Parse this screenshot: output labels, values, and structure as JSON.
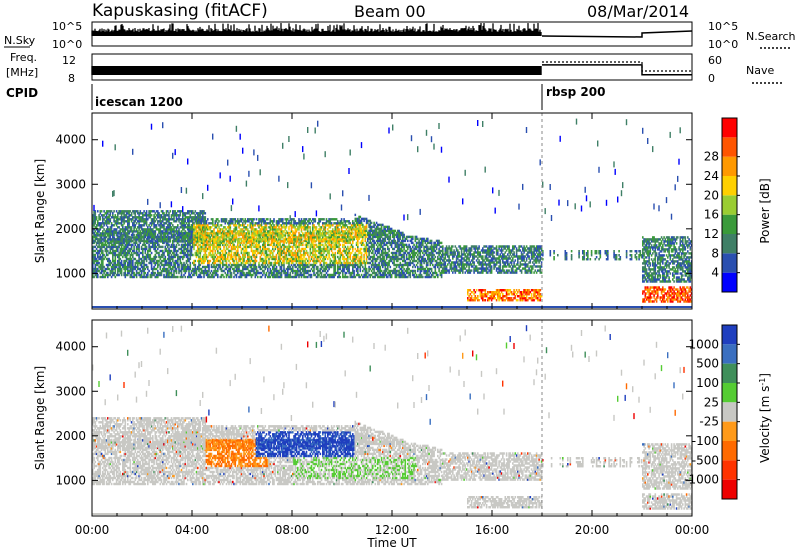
{
  "header": {
    "station": "Kapuskasing (fitACF)",
    "beam": "Beam 00",
    "date": "08/Mar/2014"
  },
  "top_panels": {
    "nsky_label": "N.Sky",
    "nsky_ticks": [
      "10^5",
      "10^0"
    ],
    "nsearch_label": "N.Search",
    "nsearch_ticks": [
      "10^5",
      "10^0"
    ],
    "freq_label": "Freq.",
    "freq_unit": "[MHz]",
    "freq_ticks": [
      "12",
      "8"
    ],
    "nave_label": "Nave",
    "nave_ticks": [
      "60",
      "0"
    ],
    "cpid_label": "CPID",
    "modes": [
      {
        "name": "icescan 1200",
        "start_hour": 0
      },
      {
        "name": "rbsp 200",
        "start_hour": 18
      }
    ],
    "nave_steps": [
      {
        "from_hour": 18,
        "to_hour": 22,
        "value": 35
      },
      {
        "from_hour": 22,
        "to_hour": 24,
        "value": 12
      }
    ]
  },
  "chart_data": [
    {
      "type": "heatmap",
      "title": "Power",
      "ylabel": "Slant Range [km]",
      "xlabel": "Time UT",
      "x_ticks": [
        "00:00",
        "04:00",
        "08:00",
        "12:00",
        "16:00",
        "20:00",
        "00:00"
      ],
      "x_range_hours": [
        0,
        24
      ],
      "y_ticks": [
        "1000",
        "2000",
        "3000",
        "4000"
      ],
      "ylim": [
        200,
        4600
      ],
      "colorbar": {
        "label": "Power [dB]",
        "ticks": [
          "4",
          "8",
          "12",
          "16",
          "20",
          "24",
          "28"
        ],
        "colors": [
          "#0000ff",
          "#2a4fb0",
          "#3f7f66",
          "#3a9a3a",
          "#9acd32",
          "#ffd000",
          "#ff9900",
          "#ff5500",
          "#ff0000"
        ]
      }
    },
    {
      "type": "heatmap",
      "title": "Velocity",
      "ylabel": "Slant Range [km]",
      "xlabel": "Time UT",
      "x_ticks": [
        "00:00",
        "04:00",
        "08:00",
        "12:00",
        "16:00",
        "20:00",
        "00:00"
      ],
      "x_range_hours": [
        0,
        24
      ],
      "y_ticks": [
        "1000",
        "2000",
        "3000",
        "4000"
      ],
      "ylim": [
        200,
        4600
      ],
      "colorbar": {
        "label": "Velocity [m s",
        "label_sup": "-1",
        "label_end": "]",
        "ticks": [
          "1000",
          "500",
          "100",
          "25",
          "-25",
          "-100",
          "-500",
          "-1000"
        ],
        "colors": [
          "#1f3fbf",
          "#3a6fc0",
          "#3f8f5a",
          "#55cc33",
          "#c8c8c4",
          "#ff9a1a",
          "#ff6a00",
          "#ff3300",
          "#ee0000"
        ]
      }
    }
  ],
  "footer": {
    "xlabel": "Time UT"
  }
}
